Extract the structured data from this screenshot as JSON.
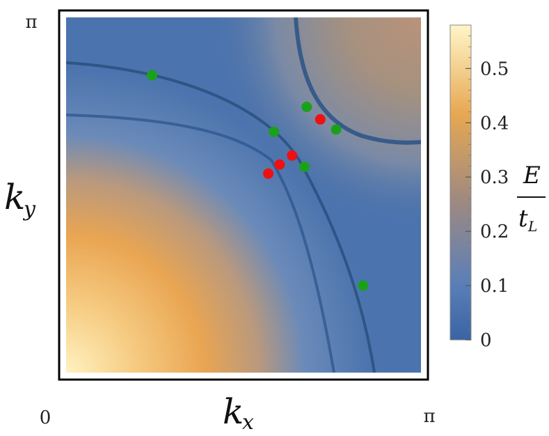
{
  "chart_data": {
    "type": "heatmap",
    "title": "",
    "xlabel": "k_x",
    "ylabel": "k_y",
    "x_ticks": [
      "0",
      "π"
    ],
    "y_ticks": [
      "π"
    ],
    "xlim": [
      0,
      3.1416
    ],
    "ylim": [
      0,
      3.1416
    ],
    "colorbar": {
      "label_numerator": "E",
      "label_denominator": "t_L",
      "range": [
        0,
        0.58
      ],
      "ticks": [
        0,
        0.1,
        0.2,
        0.3,
        0.4,
        0.5
      ],
      "tick_labels": [
        "0",
        "0.1",
        "0.2",
        "0.3",
        "0.4",
        "0.5"
      ],
      "colors": [
        "#3a64a4",
        "#5b7fb8",
        "#a08a7e",
        "#e7a853",
        "#fff6c8"
      ]
    },
    "series": [
      {
        "color": "#1aa11a",
        "points": [
          [
            0.76,
            2.63
          ],
          [
            2.13,
            2.35
          ],
          [
            1.84,
            2.13
          ],
          [
            2.39,
            2.15
          ],
          [
            2.11,
            1.82
          ],
          [
            2.63,
            0.77
          ]
        ]
      },
      {
        "color": "#ee1111",
        "points": [
          [
            2.25,
            2.24
          ],
          [
            2.0,
            1.92
          ],
          [
            1.89,
            1.84
          ],
          [
            1.79,
            1.76
          ]
        ]
      }
    ]
  }
}
